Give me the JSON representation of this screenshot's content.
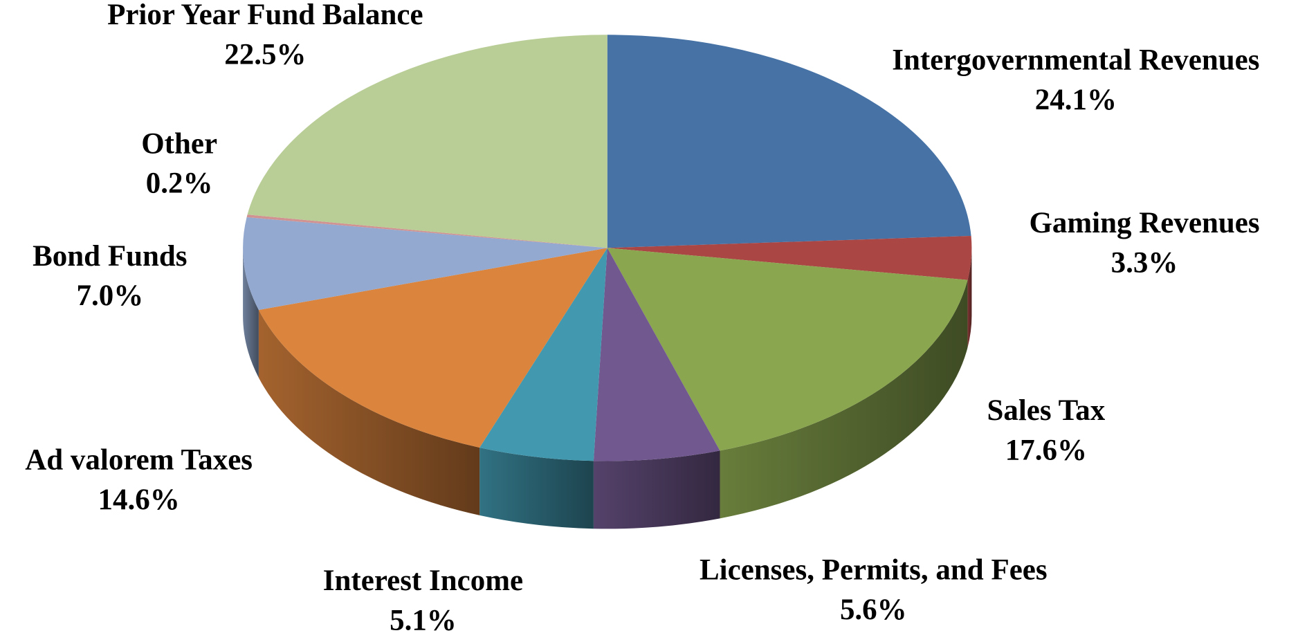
{
  "chart_data": {
    "type": "pie3d",
    "categories": [
      "Intergovernmental Revenues",
      "Gaming Revenues",
      "Sales Tax",
      "Licenses, Permits, and Fees",
      "Interest Income",
      "Ad valorem Taxes",
      "Bond Funds",
      "Other",
      "Prior Year Fund Balance"
    ],
    "values": [
      24.1,
      3.3,
      17.6,
      5.6,
      5.1,
      14.6,
      7.0,
      0.2,
      22.5
    ],
    "value_labels": [
      "24.1%",
      "3.3%",
      "17.6%",
      "5.6%",
      "5.1%",
      "14.6%",
      "7.0%",
      "0.2%",
      "22.5%"
    ],
    "colors": [
      "#4672a6",
      "#aa4644",
      "#8aa64f",
      "#71588f",
      "#4198af",
      "#db843d",
      "#93a9cf",
      "#d19392",
      "#b9cd96"
    ]
  }
}
